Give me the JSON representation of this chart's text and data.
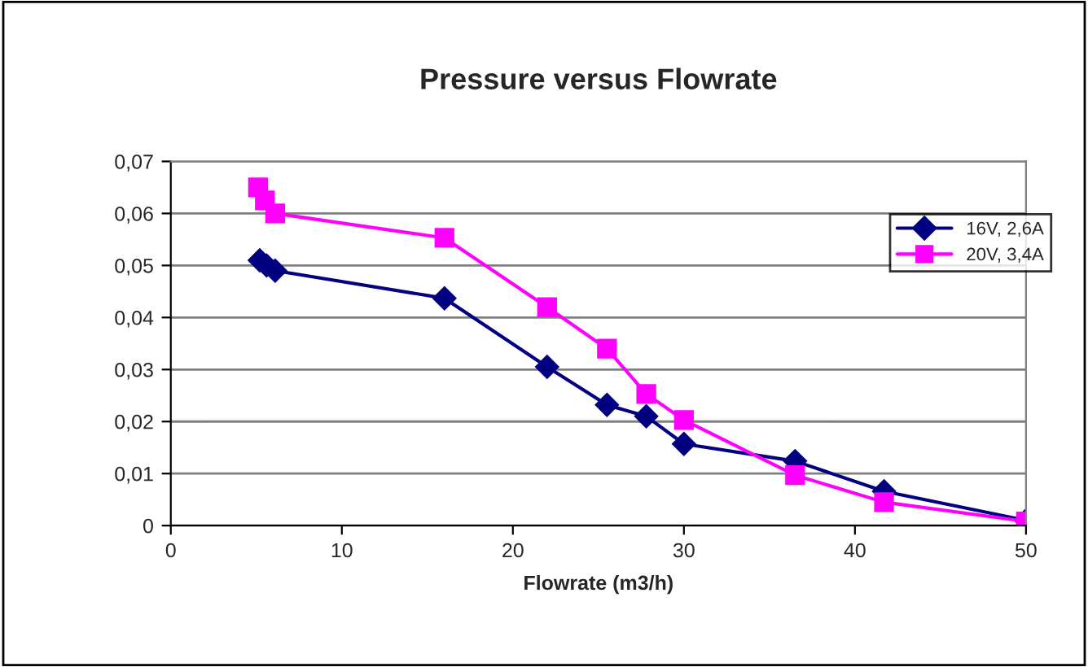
{
  "chart_data": {
    "type": "line",
    "title": "Pressure versus Flowrate",
    "xlabel": "Flowrate (m3/h)",
    "xlim": [
      0,
      50
    ],
    "xticks": [
      0,
      10,
      20,
      30,
      40,
      50
    ],
    "ylim": [
      0,
      0.07
    ],
    "yticks": [
      0,
      {
        "value": 0.01,
        "label": "0,01"
      },
      {
        "value": 0.02,
        "label": "0,02"
      },
      {
        "value": 0.03,
        "label": "0,03"
      },
      {
        "value": 0.04,
        "label": "0,04"
      },
      {
        "value": 0.05,
        "label": "0,05"
      },
      {
        "value": 0.06,
        "label": "0,06"
      },
      {
        "value": 0.07,
        "label": "0,07"
      }
    ],
    "grid": "y",
    "legend": "top right",
    "series": [
      {
        "name": "16V, 2,6A",
        "color": "#000080",
        "marker": "diamond",
        "x": [
          5.2,
          5.6,
          6.1,
          16,
          22,
          25.5,
          27.8,
          30,
          36.5,
          41.7,
          50
        ],
        "values": [
          0.051,
          0.05,
          0.049,
          0.0437,
          0.0305,
          0.0232,
          0.021,
          0.0157,
          0.0124,
          0.0066,
          0.001
        ]
      },
      {
        "name": "20V, 3,4A",
        "color": "#ff00ff",
        "marker": "square",
        "x": [
          5.1,
          5.5,
          6.1,
          16,
          22,
          25.5,
          27.8,
          30,
          36.5,
          41.7,
          50
        ],
        "values": [
          0.065,
          0.0625,
          0.06,
          0.0553,
          0.042,
          0.034,
          0.0253,
          0.0203,
          0.0097,
          0.0045,
          0.0008
        ]
      }
    ]
  }
}
